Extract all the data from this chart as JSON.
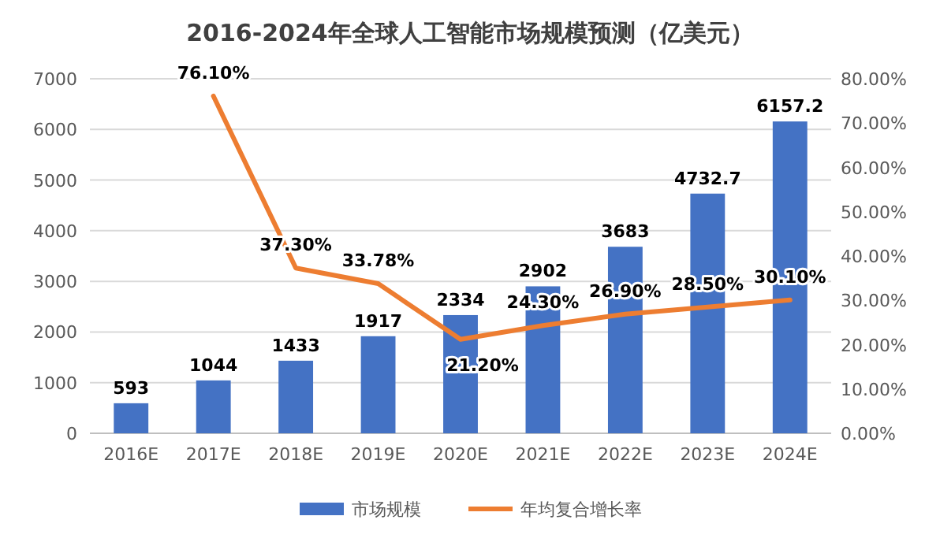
{
  "chart_data": {
    "type": "bar",
    "title": "2016-2024年全球人工智能市场规模预测（亿美元）",
    "categories": [
      "2016E",
      "2017E",
      "2018E",
      "2019E",
      "2020E",
      "2021E",
      "2022E",
      "2023E",
      "2024E"
    ],
    "series": [
      {
        "name": "市场规模",
        "color": "#4472c4",
        "values": [
          593,
          1044,
          1433,
          1917,
          2334,
          2902,
          3683,
          4732.7,
          6157.2
        ],
        "value_labels": [
          "593",
          "1044",
          "1433",
          "1917",
          "2334",
          "2902",
          "3683",
          "4732.7",
          "6157.2"
        ]
      },
      {
        "name": "年均复合增长率",
        "type": "line",
        "axis": "y2",
        "color": "#ed7d31",
        "values": [
          null,
          76.1,
          37.3,
          33.78,
          21.2,
          24.3,
          26.9,
          28.5,
          30.1
        ],
        "value_labels": [
          null,
          "76.10%",
          "37.30%",
          "33.78%",
          "21.20%",
          "24.30%",
          "26.90%",
          "28.50%",
          "30.10%"
        ]
      }
    ],
    "ylim": [
      0,
      7000
    ],
    "yticks": [
      0,
      1000,
      2000,
      3000,
      4000,
      5000,
      6000,
      7000
    ],
    "y2lim": [
      0,
      80
    ],
    "y2ticks": [
      {
        "value": 0,
        "label": "0.00%"
      },
      {
        "value": 10,
        "label": "10.00%"
      },
      {
        "value": 20,
        "label": "20.00%"
      },
      {
        "value": 30,
        "label": "30.00%"
      },
      {
        "value": 40,
        "label": "40.00%"
      },
      {
        "value": 50,
        "label": "50.00%"
      },
      {
        "value": 60,
        "label": "60.00%"
      },
      {
        "value": 70,
        "label": "70.00%"
      },
      {
        "value": 80,
        "label": "80.00%"
      }
    ],
    "grid": "y",
    "legend": "bottom"
  }
}
